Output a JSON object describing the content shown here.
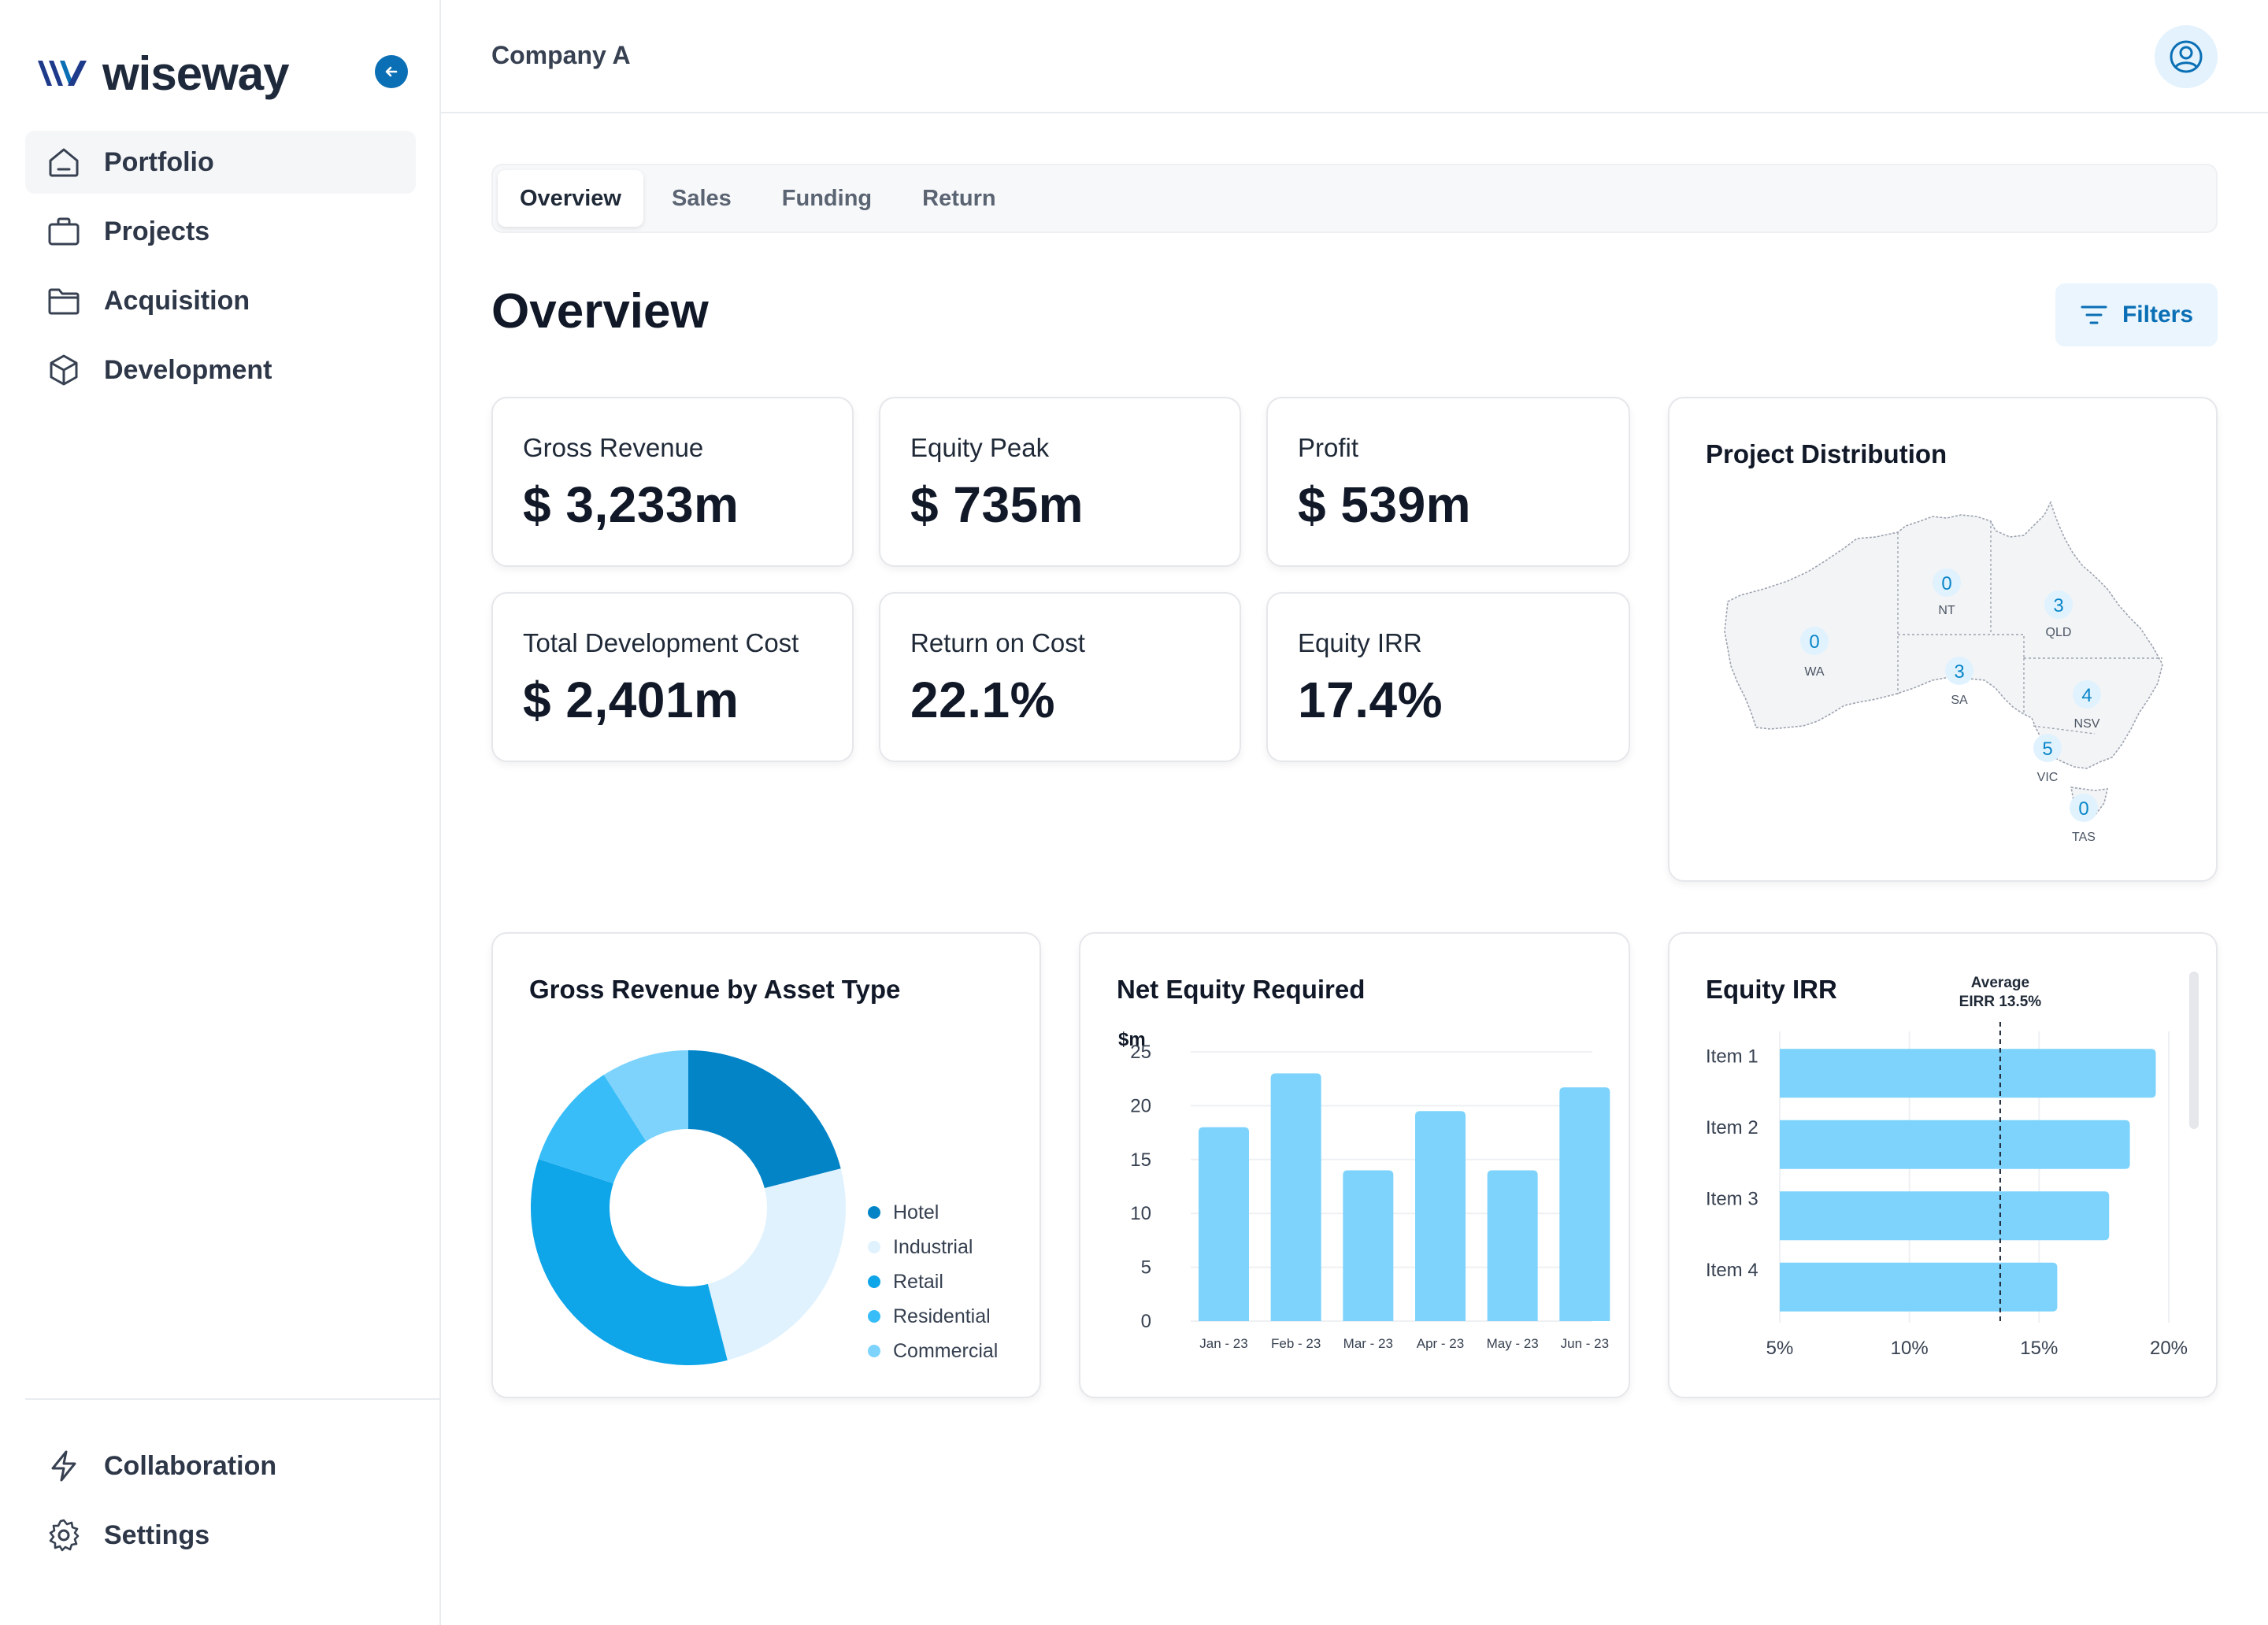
{
  "brand": {
    "name": "wiseway"
  },
  "sidebar": {
    "items": [
      {
        "label": "Portfolio",
        "icon": "home-icon",
        "active": true
      },
      {
        "label": "Projects",
        "icon": "briefcase-icon",
        "active": false
      },
      {
        "label": "Acquisition",
        "icon": "folder-icon",
        "active": false
      },
      {
        "label": "Development",
        "icon": "cube-icon",
        "active": false
      }
    ],
    "bottom_items": [
      {
        "label": "Collaboration",
        "icon": "lightning-icon"
      },
      {
        "label": "Settings",
        "icon": "gear-icon"
      }
    ]
  },
  "header": {
    "company": "Company A"
  },
  "tabs": [
    {
      "label": "Overview",
      "active": true
    },
    {
      "label": "Sales",
      "active": false
    },
    {
      "label": "Funding",
      "active": false
    },
    {
      "label": "Return",
      "active": false
    }
  ],
  "page": {
    "title": "Overview",
    "filters_label": "Filters"
  },
  "kpis": [
    {
      "label": "Gross Revenue",
      "value": "$ 3,233m"
    },
    {
      "label": "Equity Peak",
      "value": "$ 735m"
    },
    {
      "label": "Profit",
      "value": "$ 539m"
    },
    {
      "label": "Total Development Cost",
      "value": "$ 2,401m"
    },
    {
      "label": "Return on Cost",
      "value": "22.1%"
    },
    {
      "label": "Equity IRR",
      "value": "17.4%"
    }
  ],
  "map": {
    "title": "Project Distribution",
    "states": [
      {
        "code": "WA",
        "count": "0"
      },
      {
        "code": "NT",
        "count": "0"
      },
      {
        "code": "QLD",
        "count": "3"
      },
      {
        "code": "SA",
        "count": "3"
      },
      {
        "code": "NSV",
        "count": "4"
      },
      {
        "code": "VIC",
        "count": "5"
      },
      {
        "code": "TAS",
        "count": "0"
      }
    ]
  },
  "colors": {
    "accent": "#0a6fb5",
    "bar": "#7dd3fc",
    "hotel": "#0284c7",
    "industrial": "#e0f2fe",
    "retail": "#0ea5e9",
    "residential": "#38bdf8",
    "commercial": "#7dd3fc"
  },
  "chart_data": [
    {
      "type": "pie",
      "title": "Gross Revenue by Asset Type",
      "categories": [
        "Hotel",
        "Industrial",
        "Retail",
        "Residential",
        "Commercial"
      ],
      "values": [
        21,
        25,
        34,
        11,
        9
      ]
    },
    {
      "type": "bar",
      "title": "Net Equity Required",
      "ylabel": "$m",
      "categories": [
        "Jan - 23",
        "Feb - 23",
        "Mar - 23",
        "Apr - 23",
        "May - 23",
        "Jun - 23"
      ],
      "values": [
        18,
        23,
        14,
        19.5,
        14,
        21.7
      ],
      "ylim": [
        0,
        25
      ],
      "yticks": [
        0,
        5,
        10,
        15,
        20,
        25
      ]
    },
    {
      "type": "bar",
      "orientation": "horizontal",
      "title": "Equity IRR",
      "categories": [
        "Item 1",
        "Item 2",
        "Item 3",
        "Item 4"
      ],
      "values": [
        19.5,
        18.5,
        17.7,
        15.7
      ],
      "xlim": [
        5,
        20
      ],
      "xticks": [
        "5%",
        "10%",
        "15%",
        "20%"
      ],
      "reference_line": {
        "value": 13.5,
        "label_line1": "Average",
        "label_line2": "EIRR 13.5%"
      }
    }
  ]
}
